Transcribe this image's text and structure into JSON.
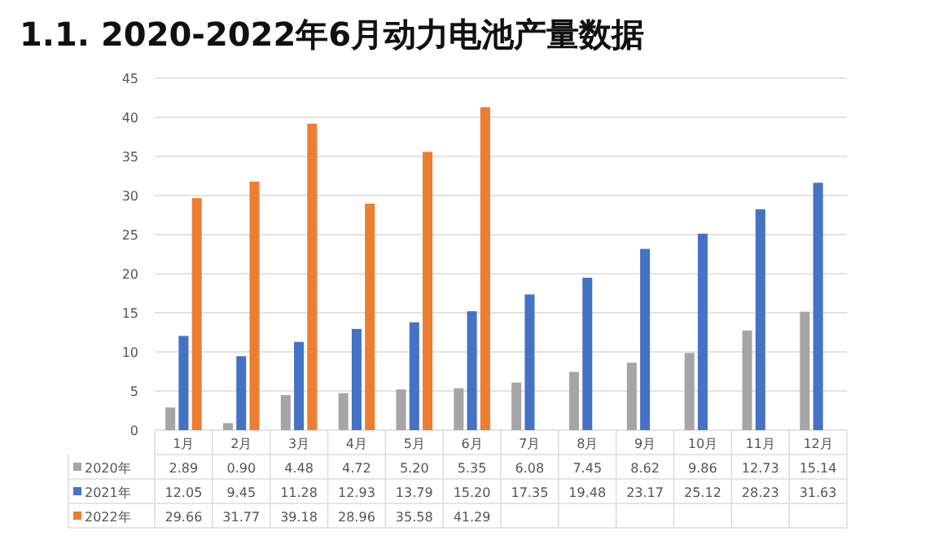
{
  "chart_data": {
    "type": "bar",
    "title": "1.1. 2020-2022年6月动力电池产量数据",
    "categories": [
      "1月",
      "2月",
      "3月",
      "4月",
      "5月",
      "6月",
      "7月",
      "8月",
      "9月",
      "10月",
      "11月",
      "12月"
    ],
    "series": [
      {
        "name": "2020年",
        "color": "#a5a5a5",
        "values": [
          2.89,
          0.9,
          4.48,
          4.72,
          5.2,
          5.35,
          6.08,
          7.45,
          8.62,
          9.86,
          12.73,
          15.14
        ],
        "value_labels": [
          "2.89",
          "0.90",
          "4.48",
          "4.72",
          "5.20",
          "5.35",
          "6.08",
          "7.45",
          "8.62",
          "9.86",
          "12.73",
          "15.14"
        ]
      },
      {
        "name": "2021年",
        "color": "#4472c4",
        "values": [
          12.05,
          9.45,
          11.28,
          12.93,
          13.79,
          15.2,
          17.35,
          19.48,
          23.17,
          25.12,
          28.23,
          31.63
        ],
        "value_labels": [
          "12.05",
          "9.45",
          "11.28",
          "12.93",
          "13.79",
          "15.20",
          "17.35",
          "19.48",
          "23.17",
          "25.12",
          "28.23",
          "31.63"
        ]
      },
      {
        "name": "2022年",
        "color": "#ed7d31",
        "values": [
          29.66,
          31.77,
          39.18,
          28.96,
          35.58,
          41.29,
          null,
          null,
          null,
          null,
          null,
          null
        ],
        "value_labels": [
          "29.66",
          "31.77",
          "39.18",
          "28.96",
          "35.58",
          "41.29",
          null,
          null,
          null,
          null,
          null,
          null
        ]
      }
    ],
    "ylim": [
      0,
      45
    ],
    "yticks": [
      0,
      5,
      10,
      15,
      20,
      25,
      30,
      35,
      40,
      45
    ],
    "grid": "y",
    "legend": "bottom"
  }
}
